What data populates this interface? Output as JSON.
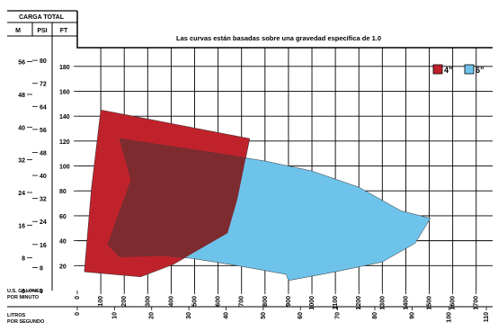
{
  "chart_data": {
    "type": "area",
    "title": "Las curvas están basadas sobre una gravedad específica de 1.0",
    "header": {
      "carga_total": "CARGA TOTAL",
      "col_m": "M",
      "col_psi": "PSI",
      "col_ft": "FT"
    },
    "xlabel_gpm": "U.S. GALONES\nPOR MINUTO",
    "xlabel_lps": "LITROS\nPOR SEGUNDO",
    "x_ticks_gpm": [
      0,
      100,
      200,
      300,
      400,
      500,
      600,
      700,
      800,
      900,
      1000,
      1100,
      1200,
      1300,
      1400,
      1500,
      1600,
      1700
    ],
    "x_ticks_lps": [
      0,
      10,
      20,
      30,
      40,
      50,
      60,
      70,
      80,
      90,
      100,
      110
    ],
    "y_ticks_ft": [
      20,
      40,
      60,
      80,
      100,
      120,
      140,
      160,
      180
    ],
    "y_ticks_m": [
      0,
      8,
      16,
      24,
      32,
      40,
      48,
      56
    ],
    "y_ticks_psi": [
      0,
      8,
      16,
      24,
      32,
      40,
      48,
      56,
      64,
      72,
      80
    ],
    "xlim": [
      0,
      1770
    ],
    "ylim_ft": [
      0,
      195
    ],
    "series": [
      {
        "name": "4”",
        "color": "#c0222b",
        "polygon": [
          [
            30,
            15
          ],
          [
            270,
            11
          ],
          [
            410,
            21
          ],
          [
            640,
            46
          ],
          [
            682,
            73
          ],
          [
            735,
            122
          ],
          [
            100,
            145
          ],
          [
            60,
            82
          ]
        ]
      },
      {
        "name": "6”",
        "color": "#6ec3ea",
        "polygon": [
          [
            180,
            122
          ],
          [
            600,
            110
          ],
          [
            800,
            104
          ],
          [
            1000,
            96
          ],
          [
            1200,
            83
          ],
          [
            1380,
            64
          ],
          [
            1505,
            58
          ],
          [
            1440,
            38
          ],
          [
            1300,
            23
          ],
          [
            1100,
            15
          ],
          [
            900,
            8
          ],
          [
            890,
            13
          ],
          [
            800,
            16
          ],
          [
            650,
            21
          ],
          [
            480,
            26
          ],
          [
            360,
            28
          ],
          [
            180,
            27
          ],
          [
            130,
            37
          ],
          [
            230,
            89
          ]
        ]
      }
    ],
    "legend_position": "top-right",
    "grid": true
  }
}
